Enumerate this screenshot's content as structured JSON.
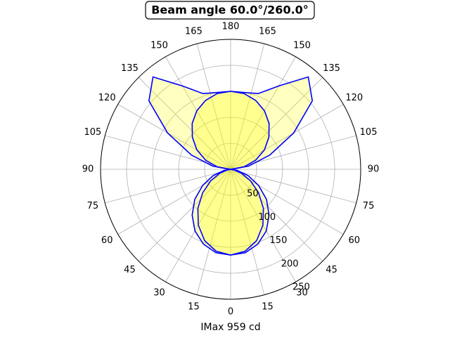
{
  "chart_data": {
    "type": "polar",
    "title": "Beam angle 60.0°/260.0°",
    "xlabel": "IMax 959 cd",
    "x": [
      0,
      10,
      20,
      30,
      40,
      50,
      60,
      70,
      80,
      90,
      100,
      110,
      120,
      130,
      140,
      150,
      160,
      170,
      180
    ],
    "series": [
      {
        "color": "#0000ff",
        "fill": "#ffff00",
        "values": [
          165,
          163,
          153,
          137,
          115,
          90,
          62,
          36,
          13,
          0,
          35,
          80,
          140,
          205,
          232,
          185,
          155,
          150,
          150
        ]
      },
      {
        "color": "#0000ff",
        "fill": "#ffff00",
        "values": [
          165,
          160,
          146,
          124,
          98,
          70,
          44,
          22,
          6,
          0,
          26,
          51,
          75,
          96,
          115,
          130,
          141,
          148,
          150
        ]
      }
    ],
    "rlim": [
      0,
      250
    ],
    "rticks": [
      50,
      100,
      150,
      200,
      250
    ],
    "thetaticks": [
      0,
      15,
      30,
      45,
      60,
      75,
      90,
      105,
      120,
      135,
      150,
      165,
      180,
      {
        "value": 195,
        "label": "165"
      },
      {
        "value": 210,
        "label": "150"
      },
      {
        "value": 225,
        "label": "135"
      },
      {
        "value": 240,
        "label": "120"
      },
      {
        "value": 255,
        "label": "105"
      },
      {
        "value": 270,
        "label": "90"
      },
      {
        "value": 285,
        "label": "75"
      },
      {
        "value": 300,
        "label": "60"
      },
      {
        "value": 315,
        "label": "45"
      },
      {
        "value": 330,
        "label": "30"
      },
      {
        "value": 345,
        "label": "15"
      }
    ],
    "grid": true
  }
}
